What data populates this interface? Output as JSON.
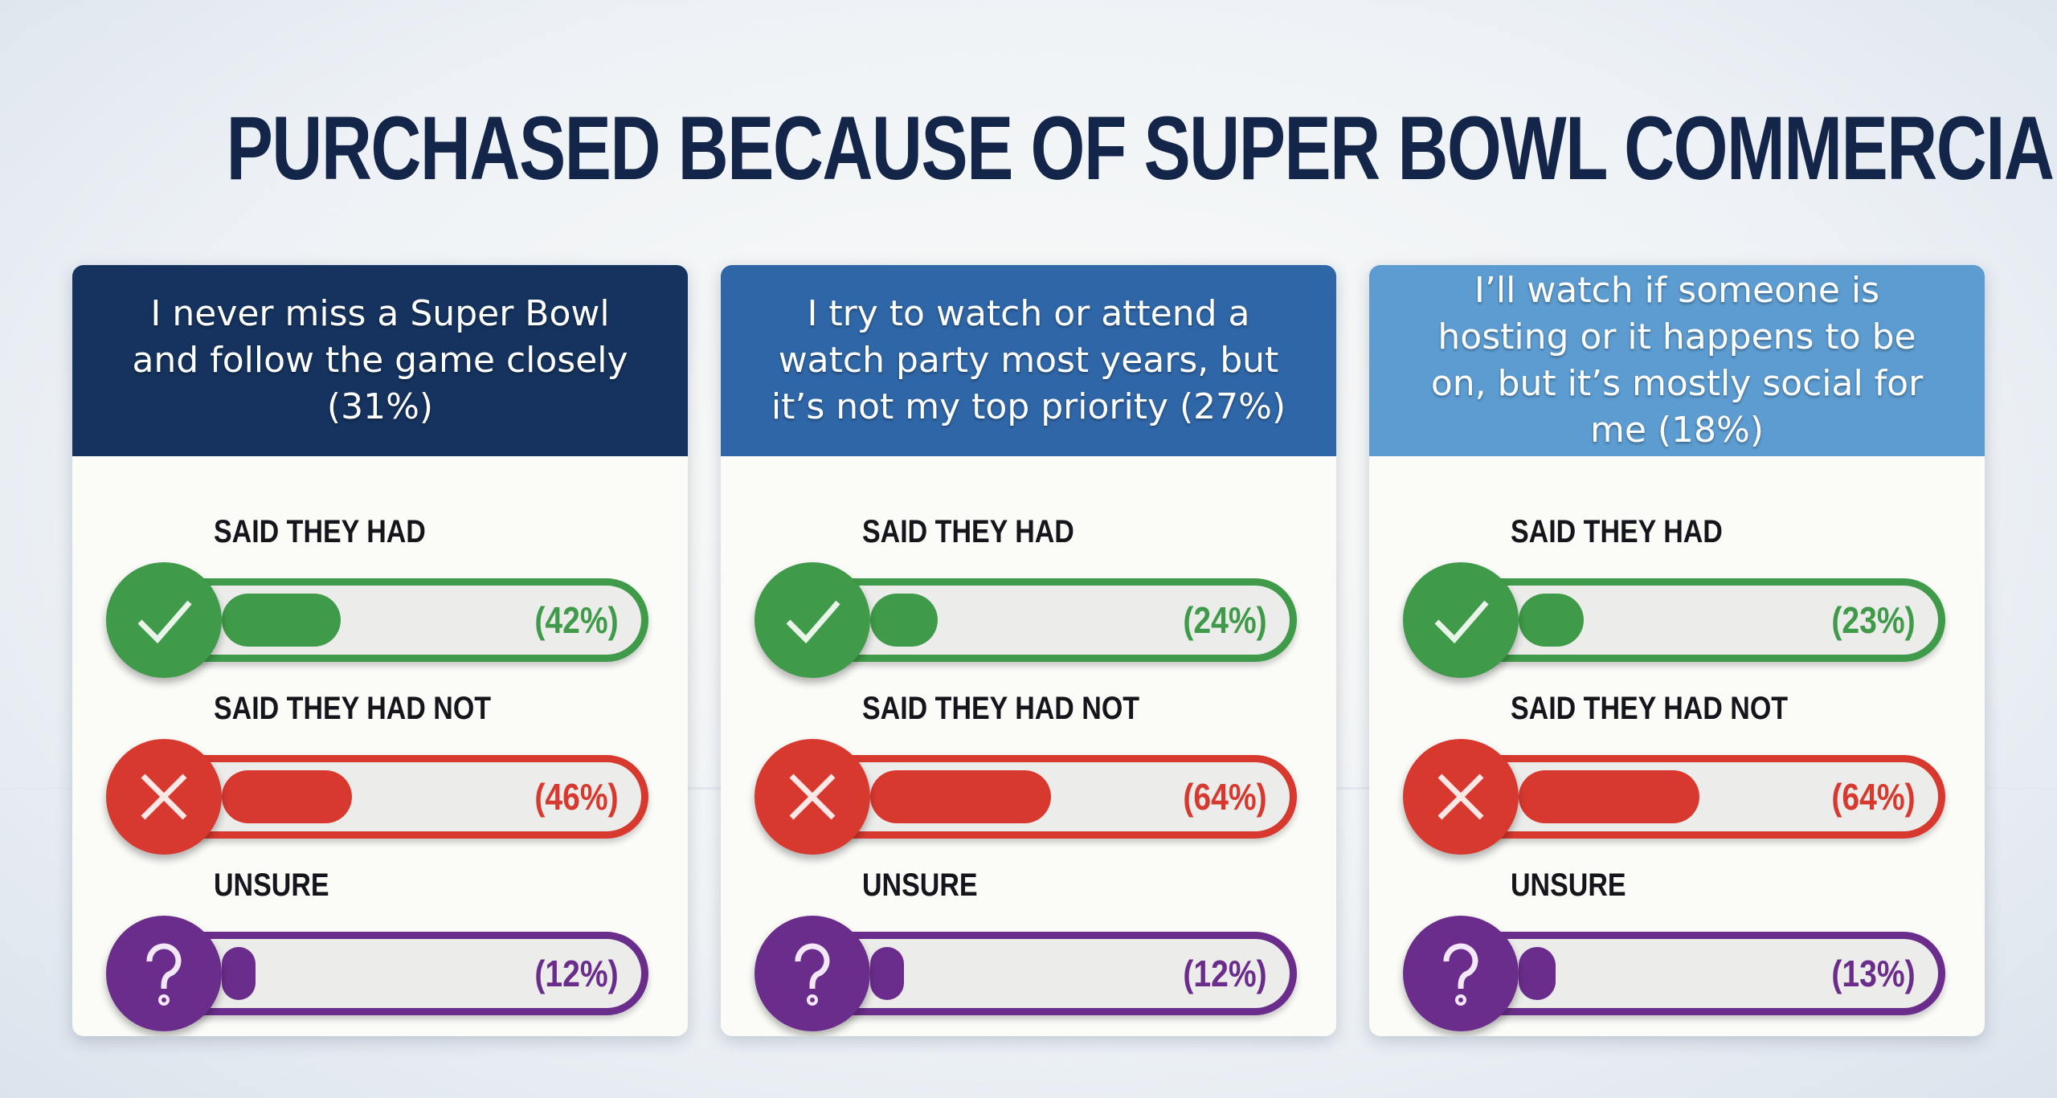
{
  "title": "PURCHASED BECAUSE OF SUPER BOWL COMMERCIAL",
  "colors": {
    "had": "#3f9b49",
    "had_not": "#d8392f",
    "unsure": "#6b2d8c",
    "title": "#13264a"
  },
  "chart_data": {
    "type": "bar",
    "title": "PURCHASED BECAUSE OF SUPER BOWL COMMERCIAL",
    "categories": [
      "SAID THEY HAD",
      "SAID THEY HAD NOT",
      "UNSURE"
    ],
    "icons": [
      "check-icon",
      "x-icon",
      "question-icon"
    ],
    "ylim": [
      0,
      100
    ],
    "panels": [
      {
        "header": "I never miss a Super Bowl and follow the game closely (31%)",
        "header_color": "#15335e",
        "values": [
          42,
          46,
          12
        ],
        "labels": [
          "(42%)",
          "(46%)",
          "(12%)"
        ]
      },
      {
        "header": "I try to watch or attend a watch party most years, but it’s not my top priority (27%)",
        "header_color": "#2f66a7",
        "values": [
          24,
          64,
          12
        ],
        "labels": [
          "(24%)",
          "(64%)",
          "(12%)"
        ]
      },
      {
        "header": "I’ll watch if someone is hosting or it happens to be on, but it’s mostly social for me (18%)",
        "header_color": "#5c9cd1",
        "values": [
          23,
          64,
          13
        ],
        "labels": [
          "(23%)",
          "(64%)",
          "(13%)"
        ]
      }
    ]
  }
}
